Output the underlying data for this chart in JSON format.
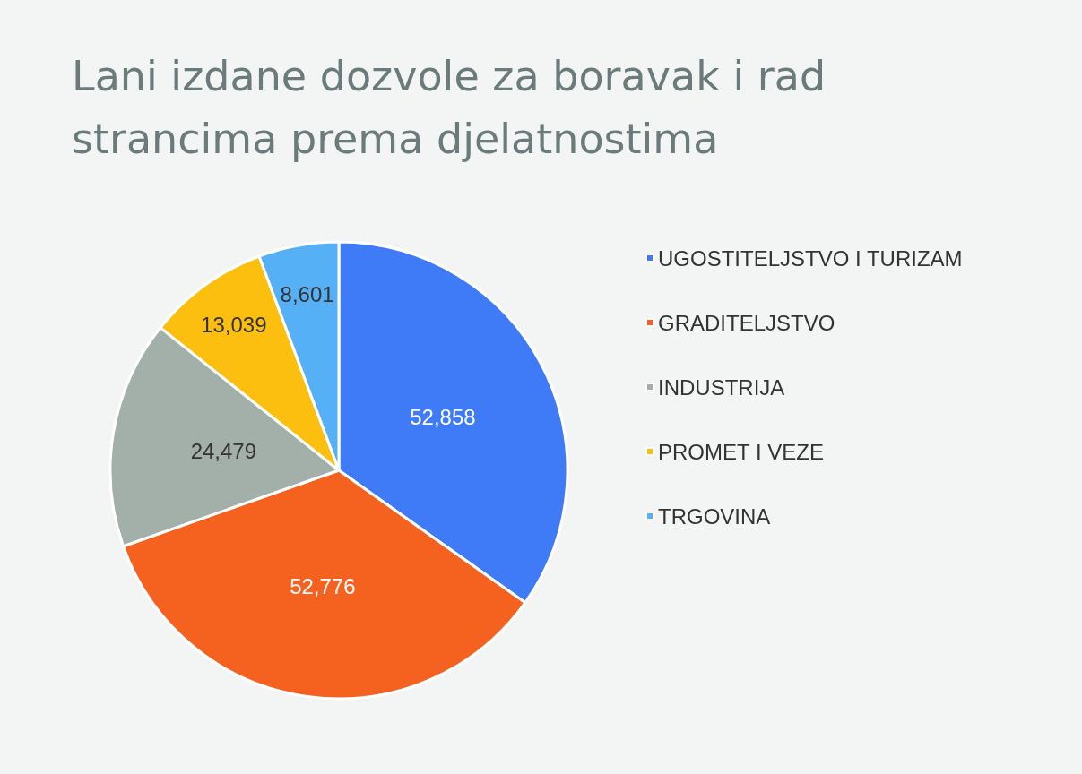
{
  "chart_data": {
    "type": "pie",
    "title": "Lani izdane dozvole za boravak i rad strancima prema djelatnostima",
    "categories": [
      "UGOSTITELJSTVO I TURIZAM",
      "GRADITELJSTVO",
      "INDUSTRIJA",
      "PROMET I VEZE",
      "TRGOVINA"
    ],
    "values": [
      52858,
      52776,
      24479,
      13039,
      8601
    ],
    "value_labels": [
      "52,858",
      "52,776",
      "24,479",
      "13,039",
      "8,601"
    ],
    "colors": [
      "#3f7af7",
      "#f5621f",
      "#a3b0aa",
      "#fcbf10",
      "#55b0f5"
    ],
    "legend": "right"
  }
}
